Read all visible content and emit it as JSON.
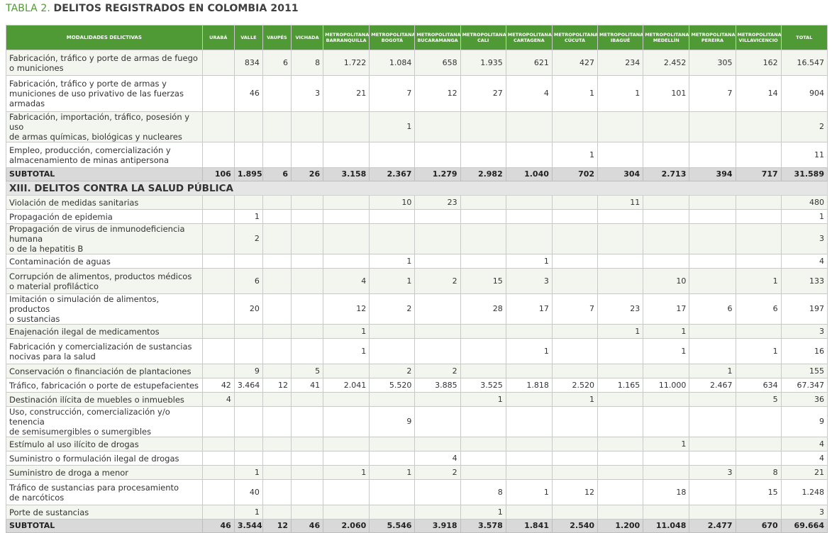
{
  "title": {
    "prefix": "TABLA 2.",
    "text": "DELITOS REGISTRADOS EN COLOMBIA 2011"
  },
  "columns": [
    {
      "lines": [
        "MODALIDADES DELICTIVAS"
      ]
    },
    {
      "lines": [
        "URABÁ"
      ]
    },
    {
      "lines": [
        "VALLE"
      ]
    },
    {
      "lines": [
        "VAUPÉS"
      ]
    },
    {
      "lines": [
        "VICHADA"
      ]
    },
    {
      "lines": [
        "METROPOLITANA",
        "BARRANQUILLA"
      ]
    },
    {
      "lines": [
        "METROPOLITANA",
        "BOGOTÁ"
      ]
    },
    {
      "lines": [
        "METROPOLITANA",
        "BUCARAMANGA"
      ]
    },
    {
      "lines": [
        "METROPOLITANA",
        "CALI"
      ]
    },
    {
      "lines": [
        "METROPOLITANA",
        "CARTAGENA"
      ]
    },
    {
      "lines": [
        "METROPOLITANA",
        "CÚCUTA"
      ]
    },
    {
      "lines": [
        "METROPOLITANA",
        "IBAGUÉ"
      ]
    },
    {
      "lines": [
        "METROPOLITANA",
        "MEDELLÍN"
      ]
    },
    {
      "lines": [
        "METROPOLITANA",
        "PEREIRA"
      ]
    },
    {
      "lines": [
        "METROPOLITANA",
        "VILLAVICENCIO"
      ]
    },
    {
      "lines": [
        "TOTAL"
      ]
    }
  ],
  "rows": [
    {
      "type": "data",
      "lines": [
        "Fabricación, tráfico y porte de armas de fuego",
        "o municiones"
      ],
      "values": [
        "",
        "834",
        "6",
        "8",
        "1.722",
        "1.084",
        "658",
        "1.935",
        "621",
        "427",
        "234",
        "2.452",
        "305",
        "162",
        "16.547"
      ]
    },
    {
      "type": "data",
      "lines": [
        "Fabricación, tráfico y porte de armas y",
        "municiones de uso privativo de las fuerzas",
        "armadas"
      ],
      "values": [
        "",
        "46",
        "",
        "3",
        "21",
        "7",
        "12",
        "27",
        "4",
        "1",
        "1",
        "101",
        "7",
        "14",
        "904"
      ]
    },
    {
      "type": "data",
      "lines": [
        "Fabricación, importación, tráfico, posesión y uso",
        "de armas químicas, biológicas y nucleares"
      ],
      "values": [
        "",
        "",
        "",
        "",
        "",
        "1",
        "",
        "",
        "",
        "",
        "",
        "",
        "",
        "",
        "2"
      ]
    },
    {
      "type": "data",
      "lines": [
        "Empleo, producción, comercialización y",
        "almacenamiento de minas antipersona"
      ],
      "values": [
        "",
        "",
        "",
        "",
        "",
        "",
        "",
        "",
        "",
        "1",
        "",
        "",
        "",
        "",
        "11"
      ]
    },
    {
      "type": "subtotal",
      "lines": [
        "SUBTOTAL"
      ],
      "values": [
        "106",
        "1.895",
        "6",
        "26",
        "3.158",
        "2.367",
        "1.279",
        "2.982",
        "1.040",
        "702",
        "304",
        "2.713",
        "394",
        "717",
        "31.589"
      ]
    },
    {
      "type": "section",
      "lines": [
        "XIII. DELITOS CONTRA LA SALUD PÚBLICA"
      ]
    },
    {
      "type": "data",
      "lines": [
        "Violación de medidas sanitarias"
      ],
      "values": [
        "",
        "",
        "",
        "",
        "",
        "10",
        "23",
        "",
        "",
        "",
        "11",
        "",
        "",
        "",
        "480"
      ]
    },
    {
      "type": "data",
      "lines": [
        "Propagación de epidemia"
      ],
      "values": [
        "",
        "1",
        "",
        "",
        "",
        "",
        "",
        "",
        "",
        "",
        "",
        "",
        "",
        "",
        "1"
      ]
    },
    {
      "type": "data",
      "lines": [
        "Propagación de virus de inmunodeficiencia humana",
        "o de la hepatitis B"
      ],
      "values": [
        "",
        "2",
        "",
        "",
        "",
        "",
        "",
        "",
        "",
        "",
        "",
        "",
        "",
        "",
        "3"
      ]
    },
    {
      "type": "data",
      "lines": [
        "Contaminación de aguas"
      ],
      "values": [
        "",
        "",
        "",
        "",
        "",
        "1",
        "",
        "",
        "1",
        "",
        "",
        "",
        "",
        "",
        "4"
      ]
    },
    {
      "type": "data",
      "lines": [
        "Corrupción de alimentos, productos médicos",
        "o material profiláctico"
      ],
      "values": [
        "",
        "6",
        "",
        "",
        "4",
        "1",
        "2",
        "15",
        "3",
        "",
        "",
        "10",
        "",
        "1",
        "133"
      ]
    },
    {
      "type": "data",
      "lines": [
        "Imitación o simulación de alimentos, productos",
        "o sustancias"
      ],
      "values": [
        "",
        "20",
        "",
        "",
        "12",
        "2",
        "",
        "28",
        "17",
        "7",
        "23",
        "17",
        "6",
        "6",
        "197"
      ]
    },
    {
      "type": "data",
      "lines": [
        "Enajenación ilegal de medicamentos"
      ],
      "values": [
        "",
        "",
        "",
        "",
        "1",
        "",
        "",
        "",
        "",
        "",
        "1",
        "1",
        "",
        "",
        "3"
      ]
    },
    {
      "type": "data",
      "lines": [
        "Fabricación y comercialización de sustancias",
        "nocivas para la salud"
      ],
      "values": [
        "",
        "",
        "",
        "",
        "1",
        "",
        "",
        "",
        "1",
        "",
        "",
        "1",
        "",
        "1",
        "16"
      ]
    },
    {
      "type": "data",
      "lines": [
        "Conservación o financiación de plantaciones"
      ],
      "values": [
        "",
        "9",
        "",
        "5",
        "",
        "2",
        "2",
        "",
        "",
        "",
        "",
        "",
        "1",
        "",
        "155"
      ]
    },
    {
      "type": "data",
      "lines": [
        "Tráfico, fabricación o porte de estupefacientes"
      ],
      "values": [
        "42",
        "3.464",
        "12",
        "41",
        "2.041",
        "5.520",
        "3.885",
        "3.525",
        "1.818",
        "2.520",
        "1.165",
        "11.000",
        "2.467",
        "634",
        "67.347"
      ]
    },
    {
      "type": "data",
      "lines": [
        "Destinación ilícita de muebles o inmuebles"
      ],
      "values": [
        "4",
        "",
        "",
        "",
        "",
        "",
        "",
        "1",
        "",
        "1",
        "",
        "",
        "",
        "5",
        "36"
      ]
    },
    {
      "type": "data",
      "lines": [
        "Uso, construcción, comercialización y/o tenencia",
        "de semisumergibles o sumergibles"
      ],
      "values": [
        "",
        "",
        "",
        "",
        "",
        "9",
        "",
        "",
        "",
        "",
        "",
        "",
        "",
        "",
        "9"
      ]
    },
    {
      "type": "data",
      "lines": [
        "Estímulo al uso ilícito de drogas"
      ],
      "values": [
        "",
        "",
        "",
        "",
        "",
        "",
        "",
        "",
        "",
        "",
        "",
        "1",
        "",
        "",
        "4"
      ]
    },
    {
      "type": "data",
      "lines": [
        "Suministro o formulación ilegal de drogas"
      ],
      "values": [
        "",
        "",
        "",
        "",
        "",
        "",
        "4",
        "",
        "",
        "",
        "",
        "",
        "",
        "",
        "4"
      ]
    },
    {
      "type": "data",
      "lines": [
        "Suministro de droga a menor"
      ],
      "values": [
        "",
        "1",
        "",
        "",
        "1",
        "1",
        "2",
        "",
        "",
        "",
        "",
        "",
        "3",
        "8",
        "21"
      ]
    },
    {
      "type": "data",
      "lines": [
        "Tráfico de sustancias para procesamiento",
        "de narcóticos"
      ],
      "values": [
        "",
        "40",
        "",
        "",
        "",
        "",
        "",
        "8",
        "1",
        "12",
        "",
        "18",
        "",
        "15",
        "1.248"
      ]
    },
    {
      "type": "data",
      "lines": [
        "Porte de sustancias"
      ],
      "values": [
        "",
        "1",
        "",
        "",
        "",
        "",
        "",
        "1",
        "",
        "",
        "",
        "",
        "",
        "",
        "3"
      ]
    },
    {
      "type": "subtotal",
      "lines": [
        "SUBTOTAL"
      ],
      "values": [
        "46",
        "3.544",
        "12",
        "46",
        "2.060",
        "5.546",
        "3.918",
        "3.578",
        "1.841",
        "2.540",
        "1.200",
        "11.048",
        "2.477",
        "670",
        "69.664"
      ]
    }
  ]
}
